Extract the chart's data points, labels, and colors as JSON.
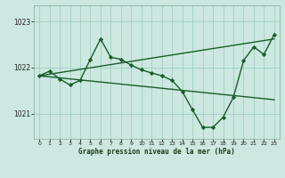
{
  "title": "Graphe pression niveau de la mer (hPa)",
  "background_color": "#cce8e0",
  "plot_bg_color": "#cce8e0",
  "grid_color": "#99ccbb",
  "line_color": "#1a5c2a",
  "xlim": [
    -0.5,
    23.5
  ],
  "ylim": [
    1020.45,
    1023.35
  ],
  "yticks": [
    1021,
    1022,
    1023
  ],
  "xticks": [
    0,
    1,
    2,
    3,
    4,
    5,
    6,
    7,
    8,
    9,
    10,
    11,
    12,
    13,
    14,
    15,
    16,
    17,
    18,
    19,
    20,
    21,
    22,
    23
  ],
  "series": [
    {
      "x": [
        0,
        23
      ],
      "y": [
        1021.82,
        1022.62
      ],
      "marker": null,
      "linewidth": 1.0
    },
    {
      "x": [
        0,
        23
      ],
      "y": [
        1021.82,
        1021.3
      ],
      "marker": null,
      "linewidth": 1.0
    },
    {
      "x": [
        0,
        1,
        2,
        3,
        4,
        5,
        6,
        7,
        8,
        9,
        10,
        11,
        12,
        13,
        14,
        15,
        16,
        17,
        18,
        19,
        20,
        21,
        22,
        23
      ],
      "y": [
        1021.82,
        1021.92,
        1021.75,
        1021.62,
        1021.72,
        1022.18,
        1022.62,
        1022.22,
        1022.18,
        1022.05,
        1021.95,
        1021.88,
        1021.82,
        1021.72,
        1021.48,
        1021.08,
        1020.7,
        1020.7,
        1020.92,
        1021.35,
        1022.15,
        1022.45,
        1022.28,
        1022.72
      ],
      "marker": "D",
      "markersize": 2.2,
      "linewidth": 1.0
    }
  ]
}
